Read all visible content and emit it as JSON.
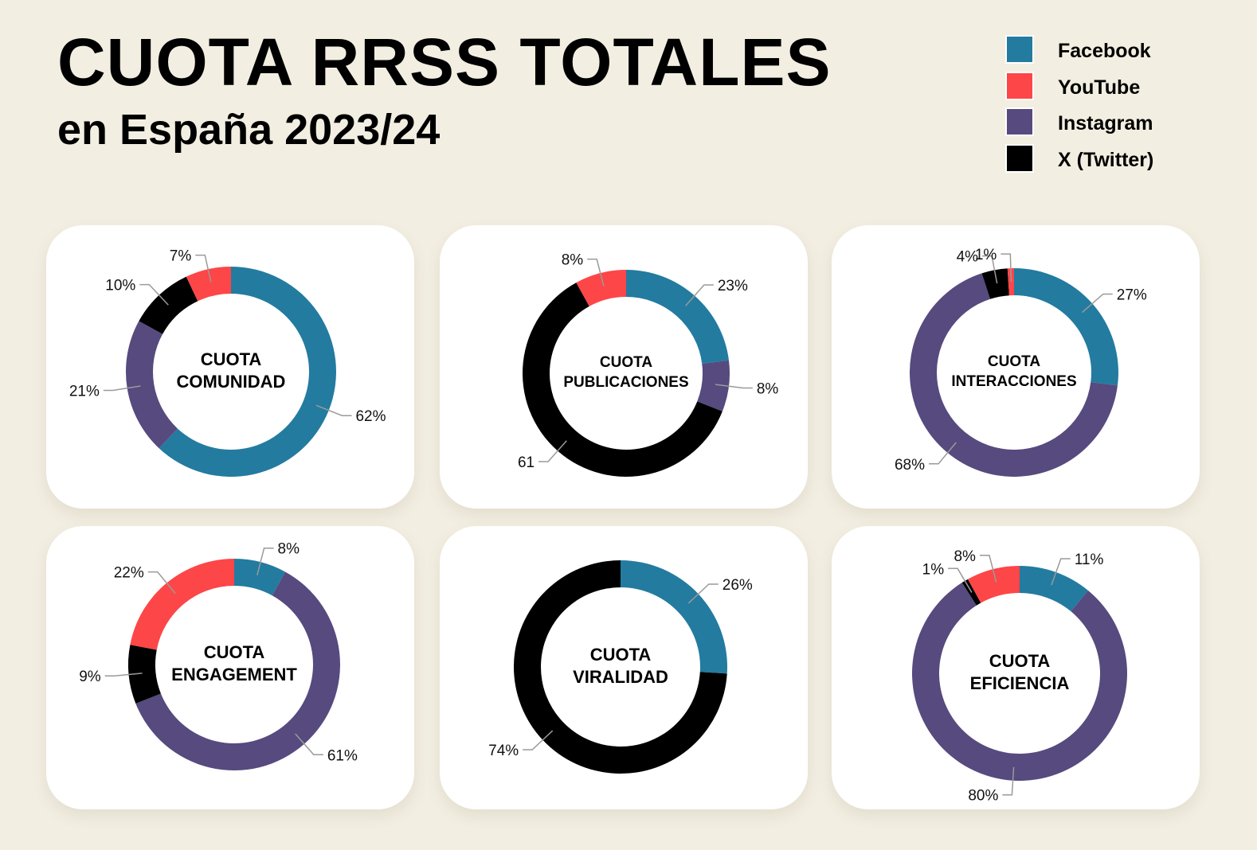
{
  "header": {
    "title": "CUOTA RRSS TOTALES",
    "subtitle": "en España 2023/24"
  },
  "legend": [
    {
      "label": "Facebook",
      "color": "#237ba0"
    },
    {
      "label": "YouTube",
      "color": "#fd4648"
    },
    {
      "label": "Instagram",
      "color": "#574a7e"
    },
    {
      "label": "X (Twitter)",
      "color": "#000000"
    }
  ],
  "chart_data": [
    {
      "type": "pie",
      "center_label": [
        "CUOTA",
        "COMUNIDAD"
      ],
      "slices": [
        {
          "series": "Facebook",
          "value": 62,
          "label": "62%"
        },
        {
          "series": "Instagram",
          "value": 21,
          "label": "21%"
        },
        {
          "series": "X (Twitter)",
          "value": 10,
          "label": "10%"
        },
        {
          "series": "YouTube",
          "value": 7,
          "label": "7%"
        }
      ]
    },
    {
      "type": "pie",
      "center_label": [
        "CUOTA",
        "PUBLICACIONES"
      ],
      "slices": [
        {
          "series": "Facebook",
          "value": 23,
          "label": "23%"
        },
        {
          "series": "Instagram",
          "value": 8,
          "label": "8%"
        },
        {
          "series": "X (Twitter)",
          "value": 61,
          "label": "61"
        },
        {
          "series": "YouTube",
          "value": 8,
          "label": "8%"
        }
      ]
    },
    {
      "type": "pie",
      "center_label": [
        "CUOTA",
        "INTERACCIONES"
      ],
      "slices": [
        {
          "series": "Facebook",
          "value": 27,
          "label": "27%"
        },
        {
          "series": "Instagram",
          "value": 68,
          "label": "68%"
        },
        {
          "series": "X (Twitter)",
          "value": 4,
          "label": "4%"
        },
        {
          "series": "YouTube",
          "value": 1,
          "label": "1%"
        }
      ]
    },
    {
      "type": "pie",
      "center_label": [
        "CUOTA",
        "ENGAGEMENT"
      ],
      "slices": [
        {
          "series": "Facebook",
          "value": 8,
          "label": "8%"
        },
        {
          "series": "Instagram",
          "value": 61,
          "label": "61%"
        },
        {
          "series": "X (Twitter)",
          "value": 9,
          "label": "9%"
        },
        {
          "series": "YouTube",
          "value": 22,
          "label": "22%"
        }
      ]
    },
    {
      "type": "pie",
      "center_label": [
        "CUOTA",
        "VIRALIDAD"
      ],
      "slices": [
        {
          "series": "Facebook",
          "value": 26,
          "label": "26%"
        },
        {
          "series": "X (Twitter)",
          "value": 74,
          "label": "74%"
        }
      ]
    },
    {
      "type": "pie",
      "center_label": [
        "CUOTA",
        "EFICIENCIA"
      ],
      "slices": [
        {
          "series": "Facebook",
          "value": 11,
          "label": "11%"
        },
        {
          "series": "Instagram",
          "value": 80,
          "label": "80%"
        },
        {
          "series": "X (Twitter)",
          "value": 1,
          "label": "1%"
        },
        {
          "series": "YouTube",
          "value": 8,
          "label": "8%"
        }
      ]
    }
  ]
}
